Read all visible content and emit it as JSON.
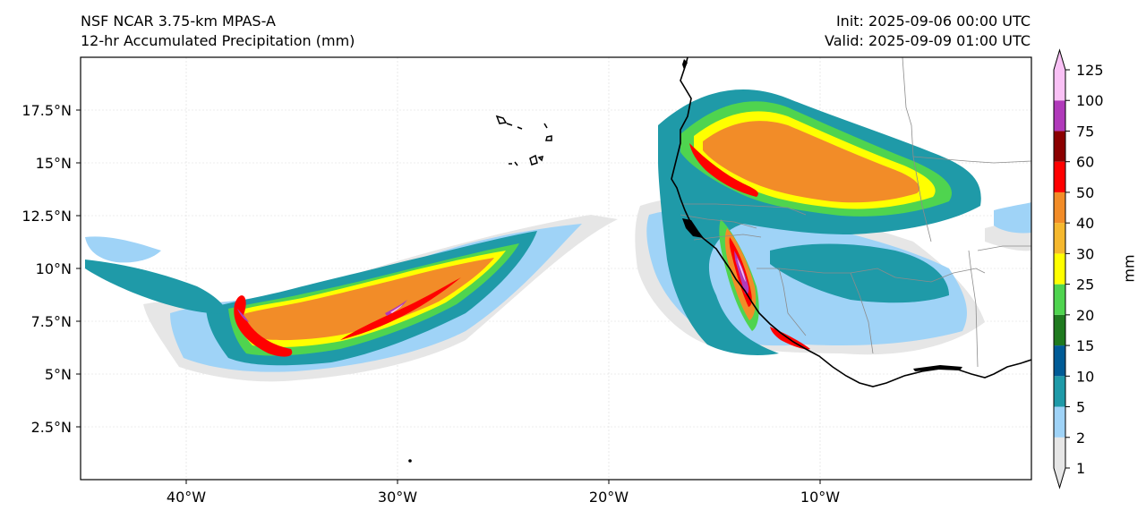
{
  "header": {
    "model": "NSF NCAR 3.75-km MPAS-A",
    "field": "12-hr Accumulated Precipitation (mm)",
    "init": "Init: 2025-09-06 00:00 UTC",
    "valid": "Valid: 2025-09-09 01:00 UTC"
  },
  "map": {
    "lon_range": [
      -45,
      0
    ],
    "lat_range": [
      0,
      20
    ],
    "lon_ticks": [
      {
        "value": -40,
        "label": "40°W"
      },
      {
        "value": -30,
        "label": "30°W"
      },
      {
        "value": -20,
        "label": "20°W"
      },
      {
        "value": -10,
        "label": "10°W"
      }
    ],
    "lat_ticks": [
      {
        "value": 2.5,
        "label": "2.5°N"
      },
      {
        "value": 5,
        "label": "5°N"
      },
      {
        "value": 7.5,
        "label": "7.5°N"
      },
      {
        "value": 10,
        "label": "10°N"
      },
      {
        "value": 12.5,
        "label": "12.5°N"
      },
      {
        "value": 15,
        "label": "15°N"
      },
      {
        "value": 17.5,
        "label": "17.5°N"
      }
    ]
  },
  "colorbar": {
    "unit_label": "mm",
    "levels": [
      1,
      2,
      5,
      10,
      15,
      20,
      25,
      30,
      40,
      50,
      60,
      75,
      100,
      125
    ],
    "colors": [
      "#e6e6e6",
      "#9fd3f7",
      "#1f9aa8",
      "#005b96",
      "#1f7a1f",
      "#4fd44f",
      "#ffff00",
      "#f5b82e",
      "#f28c28",
      "#ff0000",
      "#8b0000",
      "#b03aba",
      "#f9c1f5"
    ]
  }
}
